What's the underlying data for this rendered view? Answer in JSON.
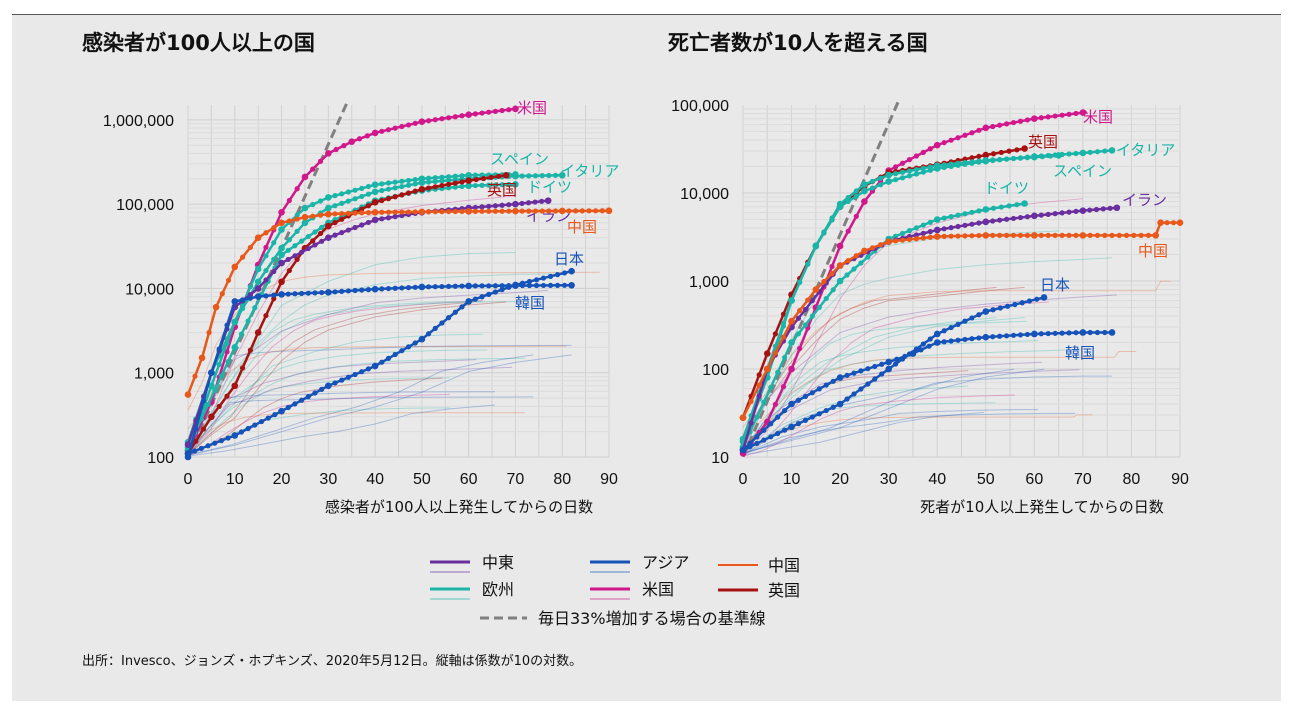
{
  "colors": {
    "middle_east": "#6a2e9e",
    "europe": "#1ab5a8",
    "asia": "#1553b8",
    "china": "#e8581a",
    "usa": "#d0188c",
    "uk": "#a61212",
    "baseline": "#808080"
  },
  "legend": {
    "middle_east": "中東",
    "europe": "欧州",
    "asia": "アジア",
    "usa": "米国",
    "china": "中国",
    "uk": "英国",
    "baseline": "毎日33%増加する場合の基準線"
  },
  "source_note": "出所：Invesco、ジョンズ・ホプキンズ、2020年5月12日。縦軸は係数が10の対数。",
  "chart_data": [
    {
      "type": "line",
      "title": "感染者が100人以上の国",
      "xlabel": "感染者が100人以上発生してからの日数",
      "ylabel": "",
      "yscale": "log",
      "xlim": [
        0,
        90
      ],
      "ylim": [
        100,
        1500000
      ],
      "x_ticks": [
        0,
        10,
        20,
        30,
        40,
        50,
        60,
        70,
        80,
        90
      ],
      "y_ticks": [
        "100",
        "1,000",
        "10,000",
        "100,000",
        "1,000,000"
      ],
      "y_tick_values": [
        100,
        1000,
        10000,
        100000,
        1000000
      ],
      "baseline": {
        "name": "毎日33%増加する場合の基準線",
        "x": [
          0,
          34
        ],
        "y": [
          100,
          1600000
        ]
      },
      "series": [
        {
          "name": "米国",
          "group": "usa",
          "labels": [
            "米国"
          ],
          "x": [
            0,
            5,
            10,
            15,
            20,
            25,
            30,
            35,
            40,
            50,
            60,
            70
          ],
          "y": [
            120,
            450,
            3500,
            19000,
            80000,
            210000,
            400000,
            550000,
            700000,
            950000,
            1150000,
            1350000
          ]
        },
        {
          "name": "スペイン",
          "group": "europe",
          "labels": [
            "スペイン"
          ],
          "x": [
            0,
            5,
            10,
            15,
            20,
            25,
            30,
            40,
            50,
            60,
            70
          ],
          "y": [
            120,
            700,
            4000,
            17000,
            50000,
            90000,
            120000,
            170000,
            200000,
            220000,
            225000
          ]
        },
        {
          "name": "イタリア",
          "group": "europe",
          "labels": [
            "イタリア"
          ],
          "x": [
            0,
            5,
            10,
            15,
            20,
            25,
            30,
            40,
            50,
            60,
            70,
            80
          ],
          "y": [
            150,
            1000,
            4000,
            12000,
            30000,
            60000,
            90000,
            140000,
            180000,
            200000,
            215000,
            220000
          ]
        },
        {
          "name": "ドイツ",
          "group": "europe",
          "labels": [
            "ドイツ"
          ],
          "x": [
            0,
            10,
            20,
            30,
            40,
            50,
            60,
            70
          ],
          "y": [
            130,
            2000,
            25000,
            60000,
            110000,
            145000,
            165000,
            172000
          ]
        },
        {
          "name": "英国",
          "group": "uk",
          "labels": [
            "英国"
          ],
          "x": [
            0,
            5,
            10,
            15,
            20,
            25,
            30,
            40,
            50,
            60,
            68
          ],
          "y": [
            110,
            300,
            700,
            3000,
            12000,
            30000,
            55000,
            105000,
            150000,
            190000,
            220000
          ]
        },
        {
          "name": "イラン",
          "group": "middle_east",
          "labels": [
            "イラン"
          ],
          "x": [
            0,
            5,
            10,
            15,
            20,
            30,
            40,
            50,
            60,
            70,
            77
          ],
          "y": [
            140,
            1000,
            6000,
            10000,
            20000,
            40000,
            65000,
            80000,
            90000,
            100000,
            110000
          ]
        },
        {
          "name": "中国",
          "group": "china",
          "labels": [
            "中国"
          ],
          "x": [
            0,
            3,
            6,
            10,
            15,
            20,
            25,
            30,
            40,
            50,
            60,
            70,
            80,
            90
          ],
          "y": [
            550,
            1500,
            6000,
            18000,
            40000,
            60000,
            70000,
            76000,
            80000,
            81000,
            82000,
            82500,
            83000,
            83500
          ]
        },
        {
          "name": "日本",
          "group": "asia",
          "labels": [
            "日本"
          ],
          "x": [
            0,
            10,
            20,
            30,
            40,
            50,
            60,
            70,
            82
          ],
          "y": [
            110,
            180,
            350,
            700,
            1200,
            2500,
            7000,
            11000,
            16000
          ]
        },
        {
          "name": "韓国",
          "group": "asia",
          "labels": [
            "韓国"
          ],
          "x": [
            0,
            5,
            10,
            15,
            20,
            30,
            40,
            50,
            60,
            70,
            82
          ],
          "y": [
            100,
            1000,
            7000,
            8000,
            8500,
            9000,
            9800,
            10400,
            10700,
            10800,
            10900
          ]
        }
      ]
    },
    {
      "type": "line",
      "title": "死亡者数が10人を超える国",
      "xlabel": "死者が10人以上発生してからの日数",
      "ylabel": "",
      "yscale": "log",
      "xlim": [
        0,
        90
      ],
      "ylim": [
        10,
        100000
      ],
      "x_ticks": [
        0,
        10,
        20,
        30,
        40,
        50,
        60,
        70,
        80,
        90
      ],
      "y_ticks": [
        "10",
        "100",
        "1,000",
        "10,000",
        "100,000"
      ],
      "y_tick_values": [
        10,
        100,
        1000,
        10000,
        100000
      ],
      "baseline": {
        "name": "毎日33%増加する場合の基準線",
        "x": [
          0,
          32
        ],
        "y": [
          10,
          110000
        ]
      },
      "series": [
        {
          "name": "米国",
          "group": "usa",
          "labels": [
            "米国"
          ],
          "x": [
            0,
            5,
            10,
            15,
            20,
            25,
            30,
            40,
            50,
            60,
            70
          ],
          "y": [
            11,
            25,
            100,
            500,
            2500,
            8000,
            18000,
            35000,
            55000,
            70000,
            82000
          ]
        },
        {
          "name": "英国",
          "group": "uk",
          "labels": [
            "英国"
          ],
          "x": [
            0,
            5,
            10,
            15,
            20,
            25,
            30,
            40,
            50,
            58
          ],
          "y": [
            28,
            150,
            700,
            2500,
            7000,
            12000,
            17000,
            21000,
            27000,
            32000
          ]
        },
        {
          "name": "イタリア",
          "group": "europe",
          "labels": [
            "イタリア"
          ],
          "x": [
            0,
            5,
            10,
            15,
            20,
            25,
            30,
            40,
            50,
            60,
            70,
            76
          ],
          "y": [
            16,
            100,
            600,
            2500,
            7000,
            10500,
            13500,
            19000,
            23000,
            26000,
            28500,
            30500
          ]
        },
        {
          "name": "スペイン",
          "group": "europe",
          "labels": [
            "スペイン"
          ],
          "x": [
            0,
            5,
            10,
            15,
            20,
            25,
            30,
            40,
            50,
            60,
            65
          ],
          "y": [
            15,
            80,
            600,
            2500,
            7500,
            12500,
            16000,
            20500,
            23500,
            25500,
            26700
          ]
        },
        {
          "name": "ドイツ",
          "group": "europe",
          "labels": [
            "ドイツ"
          ],
          "x": [
            0,
            10,
            20,
            30,
            40,
            50,
            58
          ],
          "y": [
            13,
            200,
            1000,
            3000,
            5000,
            6500,
            7600
          ]
        },
        {
          "name": "イラン",
          "group": "middle_east",
          "labels": [
            "イラン"
          ],
          "x": [
            0,
            5,
            10,
            20,
            30,
            40,
            50,
            60,
            70,
            77
          ],
          "y": [
            12,
            100,
            300,
            1500,
            2800,
            3800,
            4700,
            5500,
            6300,
            6800
          ]
        },
        {
          "name": "中国",
          "group": "china",
          "labels": [
            "中国"
          ],
          "x": [
            0,
            5,
            10,
            15,
            20,
            25,
            30,
            40,
            50,
            60,
            70,
            85,
            86,
            90
          ],
          "y": [
            28,
            100,
            350,
            800,
            1500,
            2200,
            2800,
            3200,
            3300,
            3300,
            3300,
            3300,
            4600,
            4600
          ]
        },
        {
          "name": "日本",
          "group": "asia",
          "labels": [
            "日本"
          ],
          "x": [
            0,
            10,
            20,
            30,
            40,
            50,
            62
          ],
          "y": [
            12,
            22,
            40,
            100,
            250,
            450,
            650
          ]
        },
        {
          "name": "韓国",
          "group": "asia",
          "labels": [
            "韓国"
          ],
          "x": [
            0,
            10,
            20,
            30,
            35,
            40,
            50,
            60,
            70,
            76
          ],
          "y": [
            12,
            40,
            80,
            120,
            150,
            200,
            230,
            250,
            260,
            260
          ]
        }
      ]
    }
  ]
}
